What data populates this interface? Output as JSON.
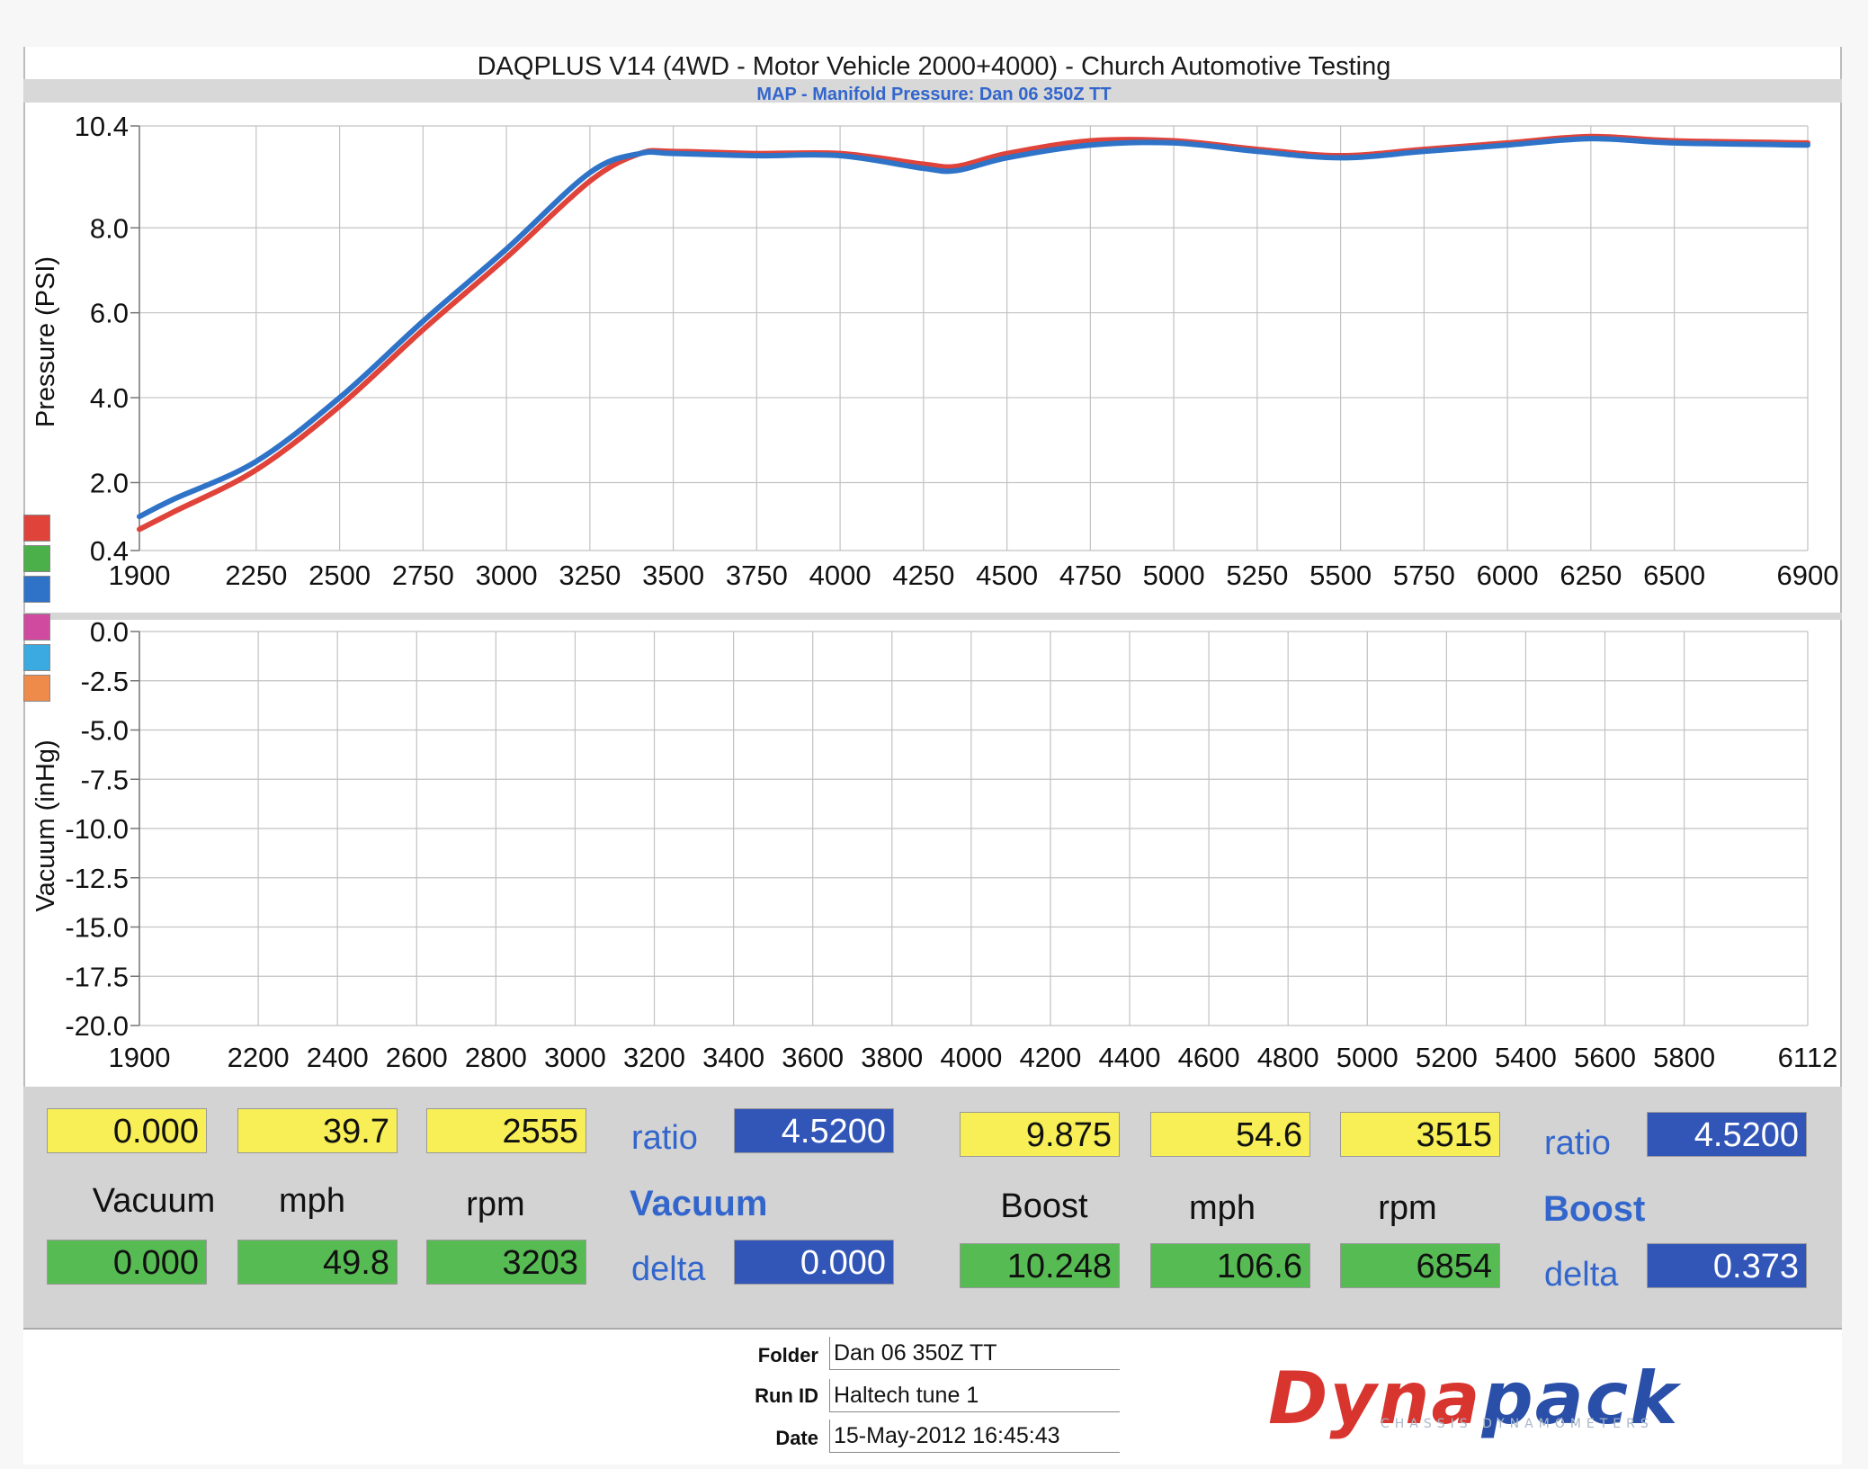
{
  "header": {
    "title": "DAQPLUS V14 (4WD - Motor Vehicle 2000+4000) - Church Automotive Testing",
    "subtitle": "MAP - Manifold Pressure: Dan 06 350Z TT"
  },
  "legend_colors": [
    "#e0433a",
    "#4cb04a",
    "#2f73c8",
    "#d04aa0",
    "#3aaae0",
    "#ee8a4a"
  ],
  "chart_data": [
    {
      "type": "line",
      "ylabel": "Pressure (PSI)",
      "ylim": [
        0.4,
        10.4
      ],
      "yticks": [
        "10.4",
        "8.0",
        "6.0",
        "4.0",
        "2.0",
        "0.4"
      ],
      "xlim": [
        1900,
        6900
      ],
      "xticks": [
        "1900",
        "2250",
        "2500",
        "2750",
        "3000",
        "3250",
        "3500",
        "3750",
        "4000",
        "4250",
        "4500",
        "4750",
        "5000",
        "5250",
        "5500",
        "5750",
        "6000",
        "6250",
        "6500",
        "6900"
      ],
      "grid": true,
      "series": [
        {
          "color": "#e0433a",
          "x": [
            1900,
            2000,
            2250,
            2500,
            2750,
            3000,
            3250,
            3400,
            3500,
            3750,
            4000,
            4250,
            4350,
            4500,
            4750,
            5000,
            5250,
            5500,
            5750,
            6000,
            6250,
            6500,
            6900
          ],
          "y": [
            0.9,
            1.3,
            2.3,
            3.8,
            5.6,
            7.3,
            9.1,
            9.75,
            9.8,
            9.75,
            9.75,
            9.5,
            9.45,
            9.75,
            10.05,
            10.05,
            9.85,
            9.7,
            9.85,
            10.0,
            10.15,
            10.05,
            10.0
          ]
        },
        {
          "color": "#2f73c8",
          "x": [
            1900,
            2000,
            2250,
            2500,
            2750,
            3000,
            3250,
            3400,
            3500,
            3750,
            4000,
            4250,
            4350,
            4500,
            4750,
            5000,
            5250,
            5500,
            5750,
            6000,
            6250,
            6500,
            6900
          ],
          "y": [
            1.2,
            1.6,
            2.5,
            4.0,
            5.8,
            7.5,
            9.3,
            9.75,
            9.75,
            9.7,
            9.7,
            9.4,
            9.35,
            9.65,
            9.95,
            10.0,
            9.8,
            9.65,
            9.8,
            9.95,
            10.1,
            10.0,
            9.95
          ]
        }
      ]
    },
    {
      "type": "line",
      "ylabel": "Vacuum (inHg)",
      "ylim": [
        -20.0,
        0.0
      ],
      "yticks": [
        "0.0",
        "-2.5",
        "-5.0",
        "-7.5",
        "-10.0",
        "-12.5",
        "-15.0",
        "-17.5",
        "-20.0"
      ],
      "xlim": [
        1900,
        6112
      ],
      "xticks": [
        "1900",
        "2200",
        "2400",
        "2600",
        "2800",
        "3000",
        "3200",
        "3400",
        "3600",
        "3800",
        "4000",
        "4200",
        "4400",
        "4600",
        "4800",
        "5000",
        "5200",
        "5400",
        "5600",
        "5800",
        "6112"
      ],
      "grid": true,
      "series": []
    }
  ],
  "panel": {
    "row1": [
      "0.000",
      "39.7",
      "2555",
      "4.5200",
      "9.875",
      "54.6",
      "3515",
      "4.5200"
    ],
    "labels": {
      "vacuum": "Vacuum",
      "mph": "mph",
      "rpm": "rpm",
      "boost": "Boost",
      "ratio": "ratio",
      "delta": "delta",
      "vacuum_bold": "Vacuum",
      "boost_bold": "Boost"
    },
    "row2": [
      "0.000",
      "49.8",
      "3203",
      "0.000",
      "10.248",
      "106.6",
      "6854",
      "0.373"
    ]
  },
  "footer": {
    "folder_label": "Folder",
    "folder_value": "Dan 06 350Z TT",
    "runid_label": "Run ID",
    "runid_value": "Haltech tune 1",
    "date_label": "Date",
    "date_value": "15-May-2012 16:45:43"
  },
  "logo": {
    "text_a": "Dyna",
    "text_b": "pack",
    "subtitle": "CHASSIS DYNAMOMETERS",
    "color_a": "#d8352f",
    "color_b": "#2a4fa8"
  }
}
